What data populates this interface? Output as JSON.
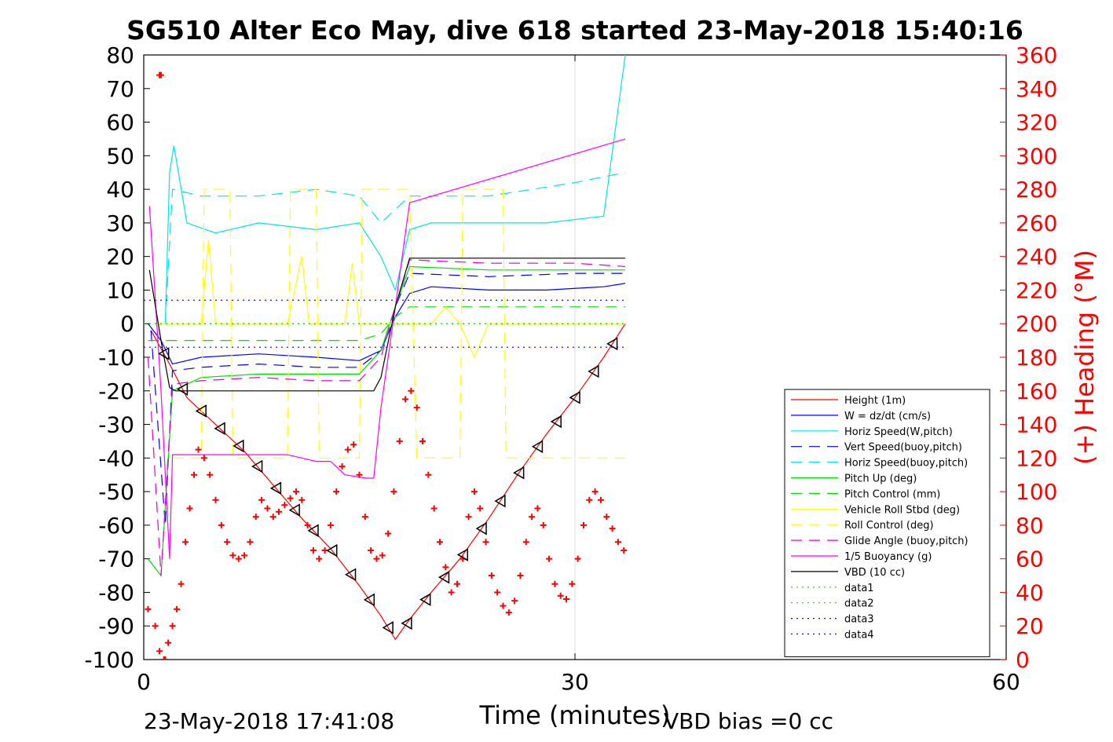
{
  "chart_data": {
    "type": "line",
    "title": "SG510 Alter Eco May, dive 618 started 23-May-2018 15:40:16",
    "xlabel": "Time (minutes)",
    "ylabel_right": "(+) Heading (°M)",
    "xlim": [
      0,
      60
    ],
    "ylim_left": [
      -100,
      80
    ],
    "ylim_right": [
      0,
      360
    ],
    "x_ticks": [
      "0",
      "30",
      "60"
    ],
    "y_ticks_left": [
      "80",
      "70",
      "60",
      "50",
      "40",
      "30",
      "20",
      "10",
      "0",
      "-10",
      "-20",
      "-30",
      "-40",
      "-50",
      "-60",
      "-70",
      "-80",
      "-90",
      "-100"
    ],
    "y_ticks_right": [
      "360",
      "340",
      "320",
      "300",
      "280",
      "260",
      "240",
      "220",
      "200",
      "180",
      "160",
      "140",
      "120",
      "100",
      "80",
      "60",
      "40",
      "20",
      "0"
    ],
    "grid": "x-only",
    "legend_position": "lower-right",
    "footer_left": "23-May-2018 17:41:08",
    "footer_right": "VBD bias =0 cc",
    "series": [
      {
        "name": "Height (1m)",
        "color": "#ff0000",
        "style": "solid",
        "x": [
          0.5,
          1.8,
          3,
          5,
          7,
          9,
          11,
          13,
          15,
          16.5,
          17.5,
          18.5,
          20,
          22,
          24,
          26,
          28,
          30,
          32,
          33.5
        ],
        "y": [
          -2,
          -12,
          -22,
          -30,
          -38,
          -48,
          -58,
          -67,
          -78,
          -87,
          -94,
          -88,
          -80,
          -70,
          -58,
          -45,
          -33,
          -22,
          -10,
          0
        ]
      },
      {
        "name": "W = dz/dt (cm/s)",
        "color": "#0000ff",
        "style": "solid",
        "x": [
          0.3,
          1.2,
          2,
          4,
          8,
          12,
          15,
          16.5,
          17.5,
          18.5,
          20,
          24,
          28,
          32,
          33.5
        ],
        "y": [
          0,
          -5,
          -12,
          -10,
          -9,
          -10,
          -11,
          -8,
          2,
          9,
          11,
          10,
          10,
          11,
          12
        ]
      },
      {
        "name": "Horiz Speed(W,pitch)",
        "color": "#00e5e5",
        "style": "solid",
        "x": [
          1.5,
          1.8,
          2.1,
          3,
          5,
          8,
          12,
          15,
          16.5,
          17.5,
          18.5,
          20,
          24,
          28,
          32,
          33.5
        ],
        "y": [
          0,
          45,
          53,
          30,
          27,
          30,
          28,
          30,
          20,
          10,
          28,
          30,
          30,
          30,
          32,
          80
        ]
      },
      {
        "name": "Vert Speed(buoy,pitch)",
        "color": "#0000ff",
        "style": "dash",
        "x": [
          0.5,
          1.5,
          2,
          4,
          8,
          12,
          15,
          16.5,
          17.5,
          18.5,
          24,
          30,
          33.5
        ],
        "y": [
          -2,
          -60,
          -14,
          -13,
          -12,
          -13,
          -13,
          -8,
          5,
          15,
          14,
          15,
          15
        ]
      },
      {
        "name": "Horiz Speed(buoy,pitch)",
        "color": "#00e5e5",
        "style": "dash",
        "x": [
          1.5,
          2,
          4,
          8,
          12,
          15,
          16.5,
          18.5,
          24,
          30,
          33.5
        ],
        "y": [
          0,
          40,
          38,
          38,
          40,
          38,
          30,
          38,
          38,
          42,
          45
        ]
      },
      {
        "name": "Pitch Up (deg)",
        "color": "#00dd00",
        "style": "solid",
        "x": [
          0.3,
          1.2,
          2,
          4,
          8,
          12,
          15,
          16.5,
          17.5,
          18.5,
          24,
          30,
          33.5
        ],
        "y": [
          -70,
          -75,
          -20,
          -16,
          -15,
          -15,
          -15,
          -8,
          5,
          17,
          16,
          16,
          16
        ]
      },
      {
        "name": "Pitch Control (mm)",
        "color": "#00dd00",
        "style": "dash",
        "x": [
          0.3,
          2,
          8,
          15,
          16.5,
          17.5,
          18.5,
          33.5
        ],
        "y": [
          -5,
          -5,
          -5,
          -5,
          -3,
          2,
          5,
          5
        ]
      },
      {
        "name": "Vehicle Roll Stbd (deg)",
        "color": "#ffff00",
        "style": "solid",
        "x": [
          1,
          3,
          4,
          4.5,
          5,
          6,
          10,
          11,
          11.5,
          12,
          14,
          14.5,
          15,
          20,
          21,
          22,
          23,
          24,
          27,
          33.5
        ],
        "y": [
          0,
          0,
          0,
          25,
          0,
          0,
          0,
          20,
          0,
          0,
          0,
          18,
          0,
          0,
          5,
          0,
          -10,
          0,
          0,
          0
        ]
      },
      {
        "name": "Roll Control (deg)",
        "color": "#ffff00",
        "style": "dash",
        "x": [
          2,
          4,
          4.2,
          6,
          6.2,
          10,
          10.2,
          12,
          12.2,
          15,
          15.2,
          18.5,
          19,
          22,
          22.2,
          25,
          25.2,
          33.5
        ],
        "y": [
          -40,
          -40,
          40,
          40,
          -40,
          -40,
          40,
          40,
          -40,
          -40,
          40,
          40,
          -40,
          -40,
          40,
          40,
          -40,
          -40
        ]
      },
      {
        "name": "Glide Angle (buoy,pitch)",
        "color": "#dd00dd",
        "style": "dash",
        "x": [
          0.3,
          1.2,
          2,
          4,
          8,
          12,
          15,
          16.5,
          17.5,
          18.5,
          24,
          30,
          33.5
        ],
        "y": [
          -10,
          -75,
          -18,
          -17,
          -16,
          -17,
          -17,
          -10,
          5,
          19,
          18,
          18,
          17
        ]
      },
      {
        "name": "1/5 Buoyancy (g)",
        "color": "#ff00ff",
        "style": "solid",
        "x": [
          0.4,
          1.2,
          1.8,
          2,
          5,
          10,
          12,
          13,
          14,
          15.5,
          16,
          16.5,
          17.5,
          18.5,
          33.5
        ],
        "y": [
          35,
          -20,
          -70,
          -39,
          -39,
          -39,
          -41,
          -41,
          -45,
          -46,
          -46,
          -25,
          5,
          36,
          55
        ]
      },
      {
        "name": "VBD (10 cc)",
        "color": "#000000",
        "style": "solid",
        "x": [
          0.4,
          1.2,
          1.8,
          2.2,
          16,
          16.5,
          17.5,
          18.5,
          33.5
        ],
        "y": [
          16,
          -5,
          -19,
          -20,
          -20,
          -16,
          5,
          19.5,
          19.5
        ]
      },
      {
        "name": "data1",
        "color": "#00dd00",
        "style": "dot",
        "x": [
          0,
          33.5
        ],
        "y": [
          0,
          0
        ]
      },
      {
        "name": "data2",
        "color": "#00dd00",
        "style": "dot",
        "x": [
          0,
          33.5
        ],
        "y": [
          0,
          0
        ]
      },
      {
        "name": "data3",
        "color": "#0000ff",
        "style": "dot",
        "x": [
          0,
          33.5
        ],
        "y": [
          7,
          7
        ]
      },
      {
        "name": "data4",
        "color": "#0000ff",
        "style": "dot",
        "x": [
          0,
          33.5
        ],
        "y": [
          -7,
          -7
        ]
      }
    ],
    "heading_points": {
      "color": "#ff0000",
      "marker": "+",
      "axis": "right",
      "x": [
        0.3,
        0.8,
        1.1,
        1.4,
        1.5,
        1.7,
        2,
        2.3,
        2.6,
        2.9,
        3.2,
        3.5,
        3.8,
        4.2,
        4.6,
        5,
        5.4,
        5.8,
        6.2,
        6.6,
        7,
        7.4,
        7.8,
        8.2,
        8.6,
        9,
        9.4,
        9.8,
        10.2,
        10.6,
        11,
        11.4,
        11.8,
        12.2,
        12.6,
        13,
        13.4,
        13.8,
        14.2,
        14.6,
        15,
        15.4,
        15.8,
        16.2,
        16.6,
        17,
        17.4,
        17.8,
        18.2,
        18.6,
        19,
        19.4,
        19.8,
        20.2,
        20.6,
        21,
        21.4,
        21.8,
        22.2,
        22.6,
        23,
        23.4,
        23.8,
        24.2,
        24.6,
        25,
        25.4,
        25.8,
        26.2,
        26.6,
        27,
        27.4,
        27.8,
        28.2,
        28.6,
        29,
        29.4,
        29.8,
        30.2,
        30.6,
        31,
        31.4,
        31.8,
        32.2,
        32.6,
        33,
        33.4,
        1.1,
        1.2
      ],
      "y": [
        30,
        20,
        5,
        0,
        0,
        10,
        20,
        30,
        45,
        70,
        90,
        110,
        125,
        120,
        110,
        95,
        80,
        70,
        62,
        60,
        62,
        70,
        85,
        95,
        90,
        85,
        88,
        92,
        96,
        100,
        95,
        80,
        65,
        60,
        65,
        80,
        100,
        115,
        125,
        128,
        110,
        85,
        65,
        60,
        62,
        75,
        100,
        130,
        155,
        160,
        150,
        130,
        110,
        90,
        70,
        55,
        40,
        45,
        60,
        85,
        100,
        90,
        70,
        50,
        40,
        32,
        28,
        35,
        50,
        70,
        85,
        90,
        80,
        60,
        45,
        38,
        36,
        45,
        60,
        80,
        95,
        100,
        95,
        85,
        78,
        70,
        65,
        348,
        348
      ]
    },
    "bottom_markers": {
      "marker": "left-pointing triangle",
      "color": "#000000"
    }
  }
}
